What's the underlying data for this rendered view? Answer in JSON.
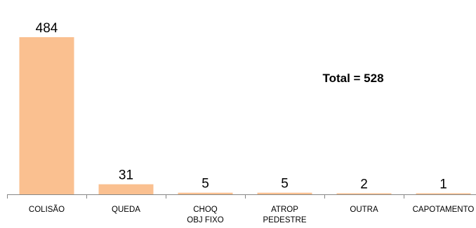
{
  "chart_data": {
    "type": "bar",
    "categories": [
      "COLISÃO",
      "QUEDA",
      "CHOQ OBJ FIXO",
      "ATROP PEDESTRE",
      "OUTRA",
      "CAPOTAMENTO"
    ],
    "category_lines": [
      [
        "COLISÃO"
      ],
      [
        "QUEDA"
      ],
      [
        "CHOQ",
        "OBJ FIXO"
      ],
      [
        "ATROP",
        "PEDESTRE"
      ],
      [
        "OUTRA"
      ],
      [
        "CAPOTAMENTO"
      ]
    ],
    "values": [
      484,
      31,
      5,
      5,
      2,
      1
    ],
    "data_labels": [
      "484",
      "31",
      "5",
      "5",
      "2",
      "1"
    ],
    "ylim": [
      0,
      484
    ],
    "bar_color": "#FAC090",
    "axis_color": "#868686",
    "annotation": "Total = 528",
    "grid": false,
    "legend": "none"
  }
}
